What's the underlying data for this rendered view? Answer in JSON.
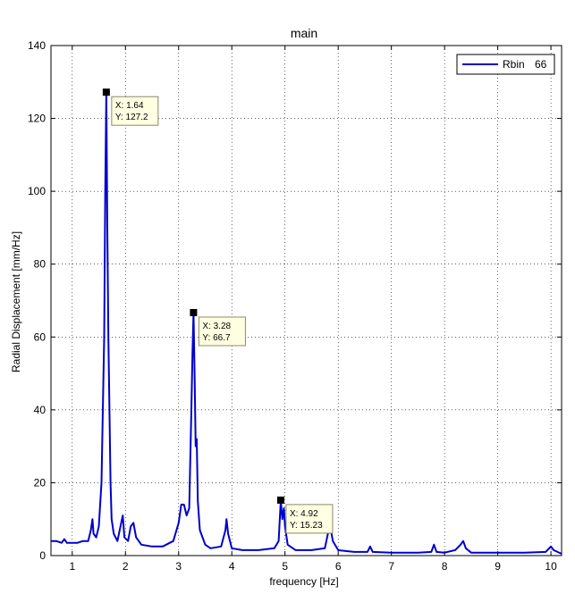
{
  "chart_data": {
    "type": "line",
    "title": "main",
    "xlabel": "frequency [Hz]",
    "ylabel": "Radial Displacement [mm/Hz]",
    "xlim": [
      0.6,
      10.2
    ],
    "ylim": [
      0,
      140
    ],
    "xticks": [
      1,
      2,
      3,
      4,
      5,
      6,
      7,
      8,
      9,
      10
    ],
    "yticks": [
      0,
      20,
      40,
      60,
      80,
      100,
      120,
      140
    ],
    "grid": true,
    "legend": {
      "position": "top-right",
      "entries": [
        {
          "label": "Rbin",
          "value": "66"
        }
      ]
    },
    "series": [
      {
        "name": "Rbin   66",
        "color": "#0000cc",
        "x": [
          0.6,
          0.7,
          0.8,
          0.85,
          0.9,
          1.0,
          1.1,
          1.2,
          1.3,
          1.35,
          1.38,
          1.4,
          1.45,
          1.5,
          1.55,
          1.6,
          1.62,
          1.64,
          1.66,
          1.68,
          1.7,
          1.72,
          1.74,
          1.78,
          1.85,
          1.95,
          1.98,
          2.05,
          2.1,
          2.15,
          2.2,
          2.3,
          2.5,
          2.7,
          2.9,
          3.0,
          3.05,
          3.1,
          3.15,
          3.2,
          3.24,
          3.26,
          3.28,
          3.3,
          3.32,
          3.34,
          3.36,
          3.4,
          3.5,
          3.6,
          3.8,
          3.88,
          3.9,
          3.93,
          4.0,
          4.2,
          4.5,
          4.8,
          4.88,
          4.92,
          4.95,
          4.98,
          5.0,
          5.05,
          5.2,
          5.5,
          5.75,
          5.82,
          5.85,
          5.9,
          6.0,
          6.3,
          6.55,
          6.6,
          6.65,
          7.0,
          7.5,
          7.75,
          7.8,
          7.85,
          8.0,
          8.2,
          8.3,
          8.35,
          8.4,
          8.5,
          9.0,
          9.5,
          9.9,
          10.0,
          10.05,
          10.2
        ],
        "y": [
          4,
          4,
          3.5,
          4.5,
          3.5,
          3.5,
          3.5,
          4,
          4,
          7,
          10,
          6,
          5,
          8,
          20,
          60,
          100,
          127.2,
          90,
          60,
          40,
          20,
          10,
          6,
          4,
          11,
          5,
          4,
          8,
          9,
          5,
          3,
          2.5,
          2.5,
          4,
          9,
          14,
          14,
          11,
          13,
          40,
          55,
          66.7,
          50,
          30,
          32,
          15,
          7,
          3,
          2,
          2.5,
          7,
          10,
          6,
          2,
          1.5,
          1.5,
          2,
          4,
          15.23,
          10,
          13,
          8,
          3,
          1.5,
          1.5,
          2,
          7,
          8,
          4,
          1.5,
          1,
          1,
          2.5,
          1,
          0.8,
          0.8,
          1,
          3,
          1,
          0.8,
          1.5,
          3,
          4,
          2,
          0.8,
          0.8,
          0.8,
          1,
          2.5,
          1.5,
          0.5
        ]
      }
    ],
    "annotations": [
      {
        "x": 1.64,
        "y": 127.2,
        "label_x": "X: 1.64",
        "label_y": "Y: 127.2"
      },
      {
        "x": 3.28,
        "y": 66.7,
        "label_x": "X: 3.28",
        "label_y": "Y: 66.7"
      },
      {
        "x": 4.92,
        "y": 15.23,
        "label_x": "X: 4.92",
        "label_y": "Y: 15.23"
      }
    ]
  }
}
